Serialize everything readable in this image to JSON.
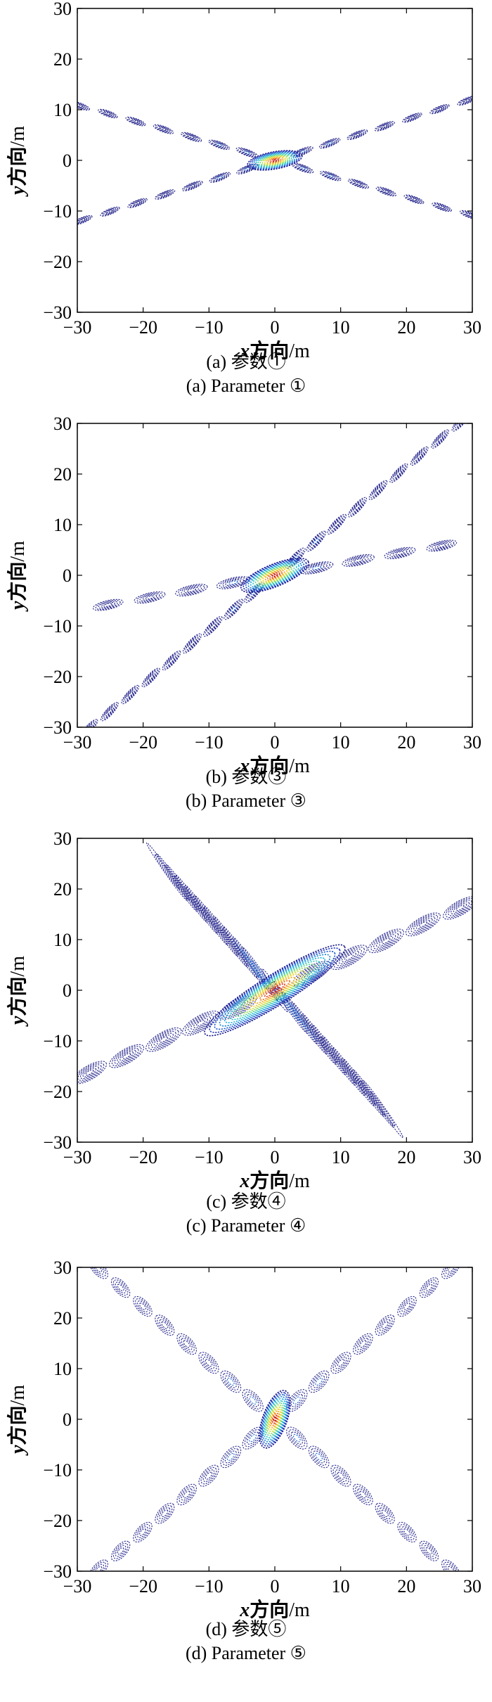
{
  "chart_data": [
    {
      "type": "contour",
      "caption_cn": "(a) 参数①",
      "caption_en": "(a) Parameter ①",
      "xlabel": {
        "var": "x",
        "dir": "方向",
        "unit": "/m"
      },
      "ylabel": {
        "var": "y",
        "dir": "方向",
        "unit": "/m"
      },
      "xlim": [
        -30,
        30
      ],
      "ylim": [
        -30,
        30
      ],
      "xticks": [
        -30,
        -20,
        -10,
        0,
        10,
        20,
        30
      ],
      "yticks": [
        -30,
        -20,
        -10,
        0,
        10,
        20,
        30
      ],
      "main_lobe": {
        "x": 0,
        "y": 0,
        "rx": 4.2,
        "ry": 1.7,
        "angle_deg": 10,
        "levels": 13
      },
      "arms": [
        {
          "angle_deg": 22,
          "spacing": 4.5,
          "length": 32,
          "lobe_rx": 1.6,
          "lobe_ry": 0.55,
          "levels": 5
        },
        {
          "angle_deg": -20,
          "spacing": 4.5,
          "length": 32,
          "lobe_rx": 1.6,
          "lobe_ry": 0.55,
          "levels": 5
        }
      ],
      "grid": false
    },
    {
      "type": "contour",
      "caption_cn": "(b) 参数③",
      "caption_en": "(b) Parameter ③",
      "xlabel": {
        "var": "x",
        "dir": "方向",
        "unit": "/m"
      },
      "ylabel": {
        "var": "y",
        "dir": "方向",
        "unit": "/m"
      },
      "xlim": [
        -30,
        30
      ],
      "ylim": [
        -30,
        30
      ],
      "xticks": [
        -30,
        -20,
        -10,
        0,
        10,
        20,
        30
      ],
      "yticks": [
        -30,
        -20,
        -10,
        0,
        10,
        20,
        30
      ],
      "main_lobe": {
        "x": 0,
        "y": 0,
        "rx": 5.5,
        "ry": 2.2,
        "angle_deg": 22,
        "levels": 14
      },
      "arms": [
        {
          "angle_deg": 47,
          "spacing": 4.6,
          "length": 42,
          "lobe_rx": 1.9,
          "lobe_ry": 0.7,
          "levels": 5
        },
        {
          "angle_deg": 13,
          "spacing": 6.5,
          "length": 32,
          "lobe_rx": 2.4,
          "lobe_ry": 0.9,
          "levels": 5
        }
      ],
      "grid": false
    },
    {
      "type": "contour",
      "caption_cn": "(c) 参数④",
      "caption_en": "(c) Parameter ④",
      "xlabel": {
        "var": "x",
        "dir": "方向",
        "unit": "/m"
      },
      "ylabel": {
        "var": "y",
        "dir": "方向",
        "unit": "/m"
      },
      "xlim": [
        -30,
        30
      ],
      "ylim": [
        -30,
        30
      ],
      "xticks": [
        -30,
        -20,
        -10,
        0,
        10,
        20,
        30
      ],
      "yticks": [
        -30,
        -20,
        -10,
        0,
        10,
        20,
        30
      ],
      "main_lobe": {
        "x": 0,
        "y": 0,
        "rx": 12.5,
        "ry": 3.0,
        "angle_deg": 32,
        "levels": 14
      },
      "arms": [
        {
          "angle_deg": 30,
          "spacing": 6.5,
          "length": 38,
          "lobe_rx": 3.0,
          "lobe_ry": 1.4,
          "levels": 6
        },
        {
          "angle_deg": -55,
          "spacing": 2.6,
          "length": 30,
          "lobe_rx": 5.5,
          "lobe_ry": 0.45,
          "levels": 2
        }
      ],
      "grid": false
    },
    {
      "type": "contour",
      "caption_cn": "(d) 参数⑤",
      "caption_en": "(d) Parameter ⑤",
      "xlabel": {
        "var": "x",
        "dir": "方向",
        "unit": "/m"
      },
      "ylabel": {
        "var": "y",
        "dir": "方向",
        "unit": "/m"
      },
      "xlim": [
        -30,
        30
      ],
      "ylim": [
        -30,
        30
      ],
      "xticks": [
        -30,
        -20,
        -10,
        0,
        10,
        20,
        30
      ],
      "yticks": [
        -30,
        -20,
        -10,
        0,
        10,
        20,
        30
      ],
      "main_lobe": {
        "x": 0,
        "y": 0,
        "rx": 4.6,
        "ry": 2.4,
        "angle_deg": 70,
        "levels": 14
      },
      "arms": [
        {
          "angle_deg": 48,
          "spacing": 5.0,
          "length": 40,
          "lobe_rx": 1.9,
          "lobe_ry": 1.2,
          "levels": 4
        },
        {
          "angle_deg": 132,
          "spacing": 5.0,
          "length": 40,
          "lobe_rx": 1.9,
          "lobe_ry": 1.2,
          "levels": 4
        }
      ],
      "grid": false
    }
  ],
  "colors": {
    "contour_outer": "#2b2b8f",
    "colormap": [
      "#1a1a8c",
      "#2340c8",
      "#1f78d8",
      "#28b0e0",
      "#3cd0c0",
      "#78d878",
      "#c8e040",
      "#f0d030",
      "#f09820",
      "#e85020",
      "#c01818"
    ]
  }
}
